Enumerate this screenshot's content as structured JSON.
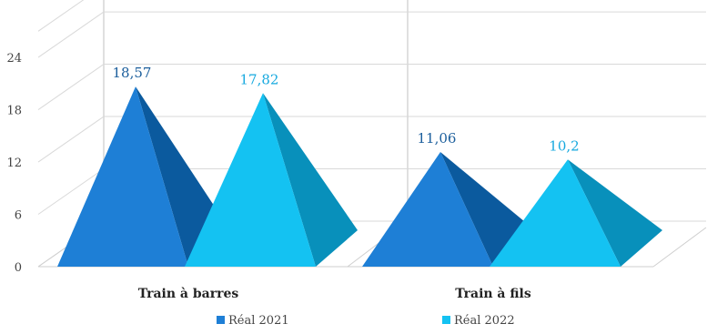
{
  "chart_data": {
    "type": "bar",
    "bar_shape": "pyramid-3d",
    "categories": [
      "Train à barres",
      "Train à fils"
    ],
    "series": [
      {
        "name": "Réal 2021",
        "values": [
          18.57,
          11.06
        ],
        "labels": [
          "18,57",
          "11,06"
        ],
        "color": "#1E7FD6",
        "shade": "#0B5A9E",
        "label_color": "#1B5E9C"
      },
      {
        "name": "Réal 2022",
        "values": [
          17.82,
          10.2
        ],
        "labels": [
          "17,82",
          "10,2"
        ],
        "color": "#14C2F2",
        "shade": "#0890BB",
        "label_color": "#17A9DF"
      }
    ],
    "yticks": [
      "0",
      "6",
      "12",
      "18",
      "24"
    ],
    "ylim": [
      0,
      24
    ],
    "grid": true,
    "legend_position": "bottom",
    "title": "",
    "xlabel": "",
    "ylabel": ""
  }
}
